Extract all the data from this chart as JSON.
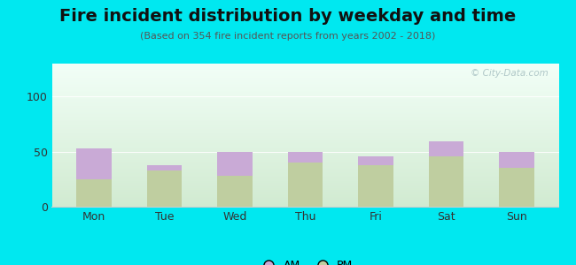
{
  "title": "Fire incident distribution by weekday and time",
  "subtitle": "(Based on 354 fire incident reports from years 2002 - 2018)",
  "categories": [
    "Mon",
    "Tue",
    "Wed",
    "Thu",
    "Fri",
    "Sat",
    "Sun"
  ],
  "am_values": [
    28,
    5,
    22,
    10,
    8,
    13,
    15
  ],
  "pm_values": [
    25,
    33,
    28,
    40,
    38,
    46,
    35
  ],
  "am_color": "#c9aad6",
  "pm_color": "#bfcea0",
  "background_color": "#00e8f0",
  "ylim": [
    0,
    130
  ],
  "yticks": [
    0,
    50,
    100
  ],
  "bar_width": 0.5,
  "watermark": "© City-Data.com",
  "title_fontsize": 14,
  "subtitle_fontsize": 8,
  "tick_fontsize": 9
}
